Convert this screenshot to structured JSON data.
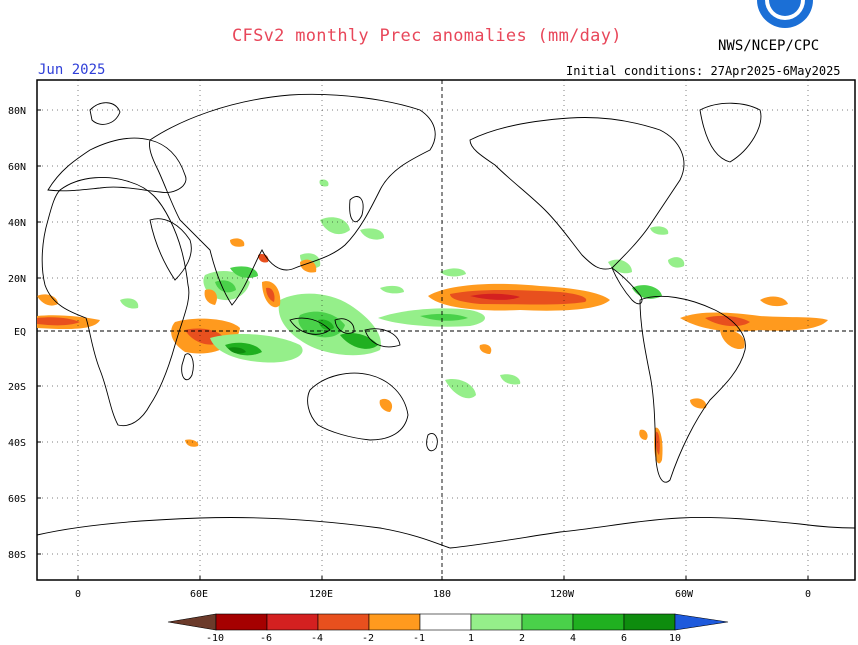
{
  "header": {
    "title": "CFSv2 monthly Prec anomalies (mm/day)",
    "organization": "NWS/NCEP/CPC",
    "month": "Jun 2025",
    "initial_conditions": "Initial conditions: 27Apr2025-6May2025",
    "logo_icon": "noaa-logo-icon"
  },
  "map": {
    "lat_labels": [
      "80N",
      "60N",
      "40N",
      "20N",
      "EQ",
      "20S",
      "40S",
      "60S",
      "80S"
    ],
    "lon_labels": [
      "0",
      "60E",
      "120E",
      "180",
      "120W",
      "60W",
      "0"
    ],
    "colors": {
      "land_outline": "#000000",
      "grid": "#000000",
      "title": "#e8475a",
      "month": "#2f3fd8"
    }
  },
  "colorbar": {
    "labels": [
      "-10",
      "-6",
      "-4",
      "-2",
      "-1",
      "1",
      "2",
      "4",
      "6",
      "10"
    ],
    "colors": [
      "#6b3a2a",
      "#a50000",
      "#d42020",
      "#e8501e",
      "#ff9a1e",
      "#ffffff",
      "#95ef8a",
      "#4ad14a",
      "#20b020",
      "#0e8c0e",
      "#1e5adc"
    ]
  }
}
